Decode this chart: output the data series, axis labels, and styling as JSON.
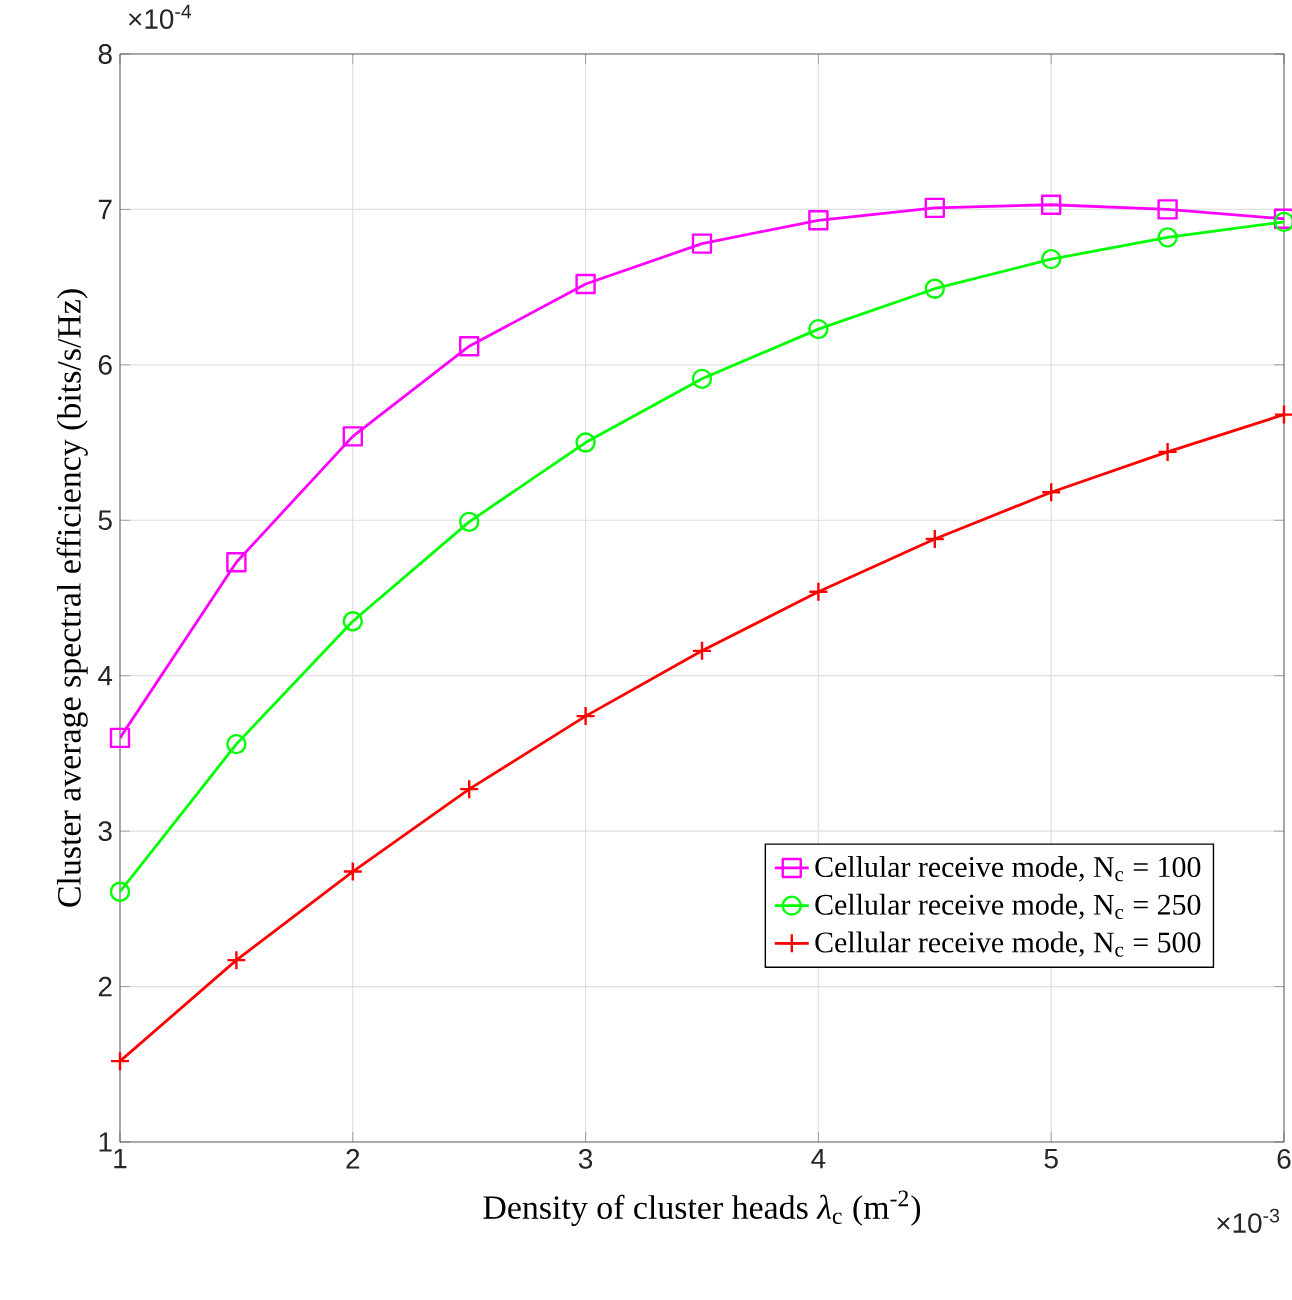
{
  "chart_data": {
    "type": "line",
    "xlabel": "Density of cluster heads *λ*$_{c}$ (m$^{-2}$)",
    "ylabel": "Cluster average spectral efficiency (bits/s/Hz)",
    "annotations": [
      "×10$^{-4}$",
      "×10$^{-3}$"
    ],
    "x": [
      1,
      1.5,
      2,
      2.5,
      3,
      3.5,
      4,
      4.5,
      5,
      5.5,
      6
    ],
    "series": [
      {
        "name": "Cellular receive mode, N$_{c}$ = 100",
        "color": "#ff00ff",
        "marker": "square",
        "values": [
          3.6,
          4.73,
          5.54,
          6.12,
          6.52,
          6.78,
          6.93,
          7.01,
          7.03,
          7.0,
          6.94
        ]
      },
      {
        "name": "Cellular receive mode, N$_{c}$ = 250",
        "color": "#00ff00",
        "marker": "circle",
        "values": [
          2.61,
          3.56,
          4.35,
          4.99,
          5.5,
          5.91,
          6.23,
          6.49,
          6.68,
          6.82,
          6.92
        ]
      },
      {
        "name": "Cellular receive mode, N$_{c}$ = 500",
        "color": "#ff0000",
        "marker": "cross",
        "values": [
          1.52,
          2.17,
          2.74,
          3.27,
          3.74,
          4.16,
          4.54,
          4.88,
          5.18,
          5.44,
          5.68
        ]
      }
    ],
    "xlim": [
      1,
      6
    ],
    "ylim": [
      1,
      8
    ],
    "xticks": [
      1,
      2,
      3,
      4,
      5,
      6
    ],
    "yticks": [
      1,
      2,
      3,
      4,
      5,
      6,
      7,
      8
    ],
    "grid": true,
    "legend": "bottom right",
    "line_style": "solid"
  }
}
